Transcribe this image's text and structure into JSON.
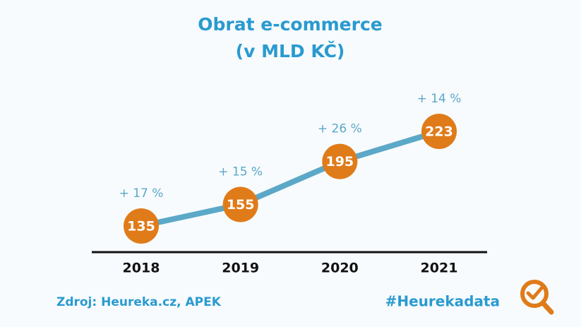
{
  "chart_data": {
    "type": "line",
    "title": "Obrat e-commerce",
    "subtitle": "(v MLD KČ)",
    "categories": [
      "2018",
      "2019",
      "2020",
      "2021"
    ],
    "values": [
      135,
      155,
      195,
      223
    ],
    "color": "#5ba8c8",
    "marker_color": "#e07b1a",
    "annotations": [
      "+ 17 %",
      "+ 15 %",
      "+ 26 %",
      "+ 14 %"
    ],
    "source": "Zdroj: Heureka.cz, APEK",
    "tag": "#Heurekadata"
  }
}
